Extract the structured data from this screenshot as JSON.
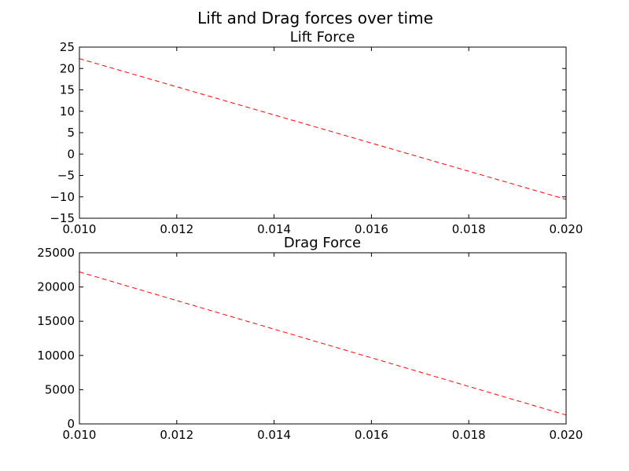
{
  "figure_title": "Lift and Drag forces over time",
  "line_color": "#ff0000",
  "chart_data": [
    {
      "type": "line",
      "title": "Lift Force",
      "xlabel": "",
      "ylabel": "",
      "xlim": [
        0.01,
        0.02
      ],
      "ylim": [
        -15,
        25
      ],
      "x_ticks": [
        0.01,
        0.012,
        0.014,
        0.016,
        0.018,
        0.02
      ],
      "x_tick_labels": [
        "0.010",
        "0.012",
        "0.014",
        "0.016",
        "0.018",
        "0.020"
      ],
      "y_ticks": [
        -15,
        -10,
        -5,
        0,
        5,
        10,
        15,
        20,
        25
      ],
      "y_tick_labels": [
        "−15",
        "−10",
        "−5",
        "0",
        "5",
        "10",
        "15",
        "20",
        "25"
      ],
      "line_style": "dashed",
      "grid": false,
      "series": [
        {
          "x": [
            0.01,
            0.02
          ],
          "y": [
            22.3,
            -10.6
          ]
        }
      ]
    },
    {
      "type": "line",
      "title": "Drag Force",
      "xlabel": "",
      "ylabel": "",
      "xlim": [
        0.01,
        0.02
      ],
      "ylim": [
        0,
        25000
      ],
      "x_ticks": [
        0.01,
        0.012,
        0.014,
        0.016,
        0.018,
        0.02
      ],
      "x_tick_labels": [
        "0.010",
        "0.012",
        "0.014",
        "0.016",
        "0.018",
        "0.020"
      ],
      "y_ticks": [
        0,
        5000,
        10000,
        15000,
        20000,
        25000
      ],
      "y_tick_labels": [
        "0",
        "5000",
        "10000",
        "15000",
        "20000",
        "25000"
      ],
      "line_style": "dashed",
      "grid": false,
      "series": [
        {
          "x": [
            0.01,
            0.02
          ],
          "y": [
            22200,
            1300
          ]
        }
      ]
    }
  ]
}
